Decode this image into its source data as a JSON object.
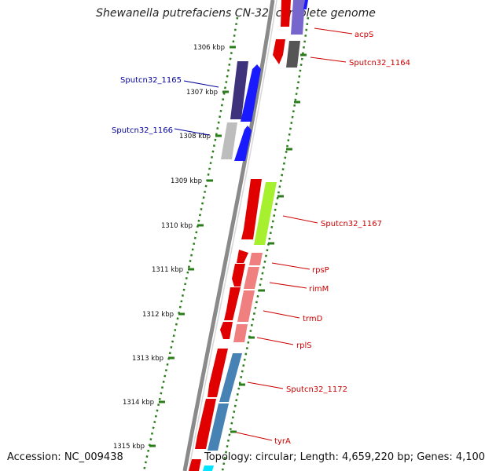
{
  "title": "Shewanella putrefaciens CN-32, complete genome",
  "footer": {
    "accession": "Accession: NC_009438",
    "summary": "Topology: circular; Length: 4,659,220 bp; Genes: 4,100"
  },
  "colors": {
    "backbone": "#8c8c8c",
    "tick": "#2a7d1a",
    "label_red": "#cc0000",
    "label_blue": "#000099"
  },
  "ticks": [
    {
      "label": "1306 kbp"
    },
    {
      "label": "1307 kbp"
    },
    {
      "label": "1308 kbp"
    },
    {
      "label": "1309 kbp"
    },
    {
      "label": "1310 kbp"
    },
    {
      "label": "1311 kbp"
    },
    {
      "label": "1312 kbp"
    },
    {
      "label": "1313 kbp"
    },
    {
      "label": "1314 kbp"
    },
    {
      "label": "1315 kbp"
    }
  ],
  "gene_labels_right": [
    {
      "text": "acpS"
    },
    {
      "text": "Sputcn32_1164"
    },
    {
      "text": "Sputcn32_1167"
    },
    {
      "text": "rpsP"
    },
    {
      "text": "rimM"
    },
    {
      "text": "trmD"
    },
    {
      "text": "rplS"
    },
    {
      "text": "Sputcn32_1172"
    },
    {
      "text": "tyrA"
    }
  ],
  "gene_labels_left": [
    {
      "text": "Sputcn32_1165"
    },
    {
      "text": "Sputcn32_1166"
    }
  ]
}
